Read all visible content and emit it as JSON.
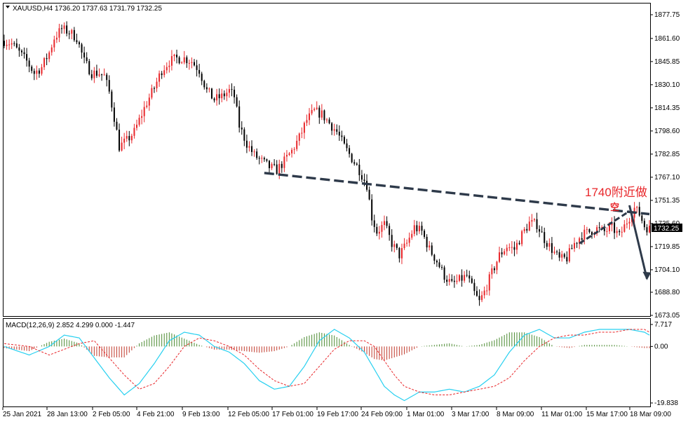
{
  "chart_data": [
    {
      "type": "candlestick",
      "title": "XAUUSD,H4",
      "ohlc_header": "1736.20 1737.63 1731.79 1732.25",
      "ylim": [
        1673.05,
        1880.0
      ],
      "y_ticks": [
        "1877.75",
        "1861.60",
        "1845.85",
        "1830.10",
        "1814.35",
        "1798.60",
        "1782.85",
        "1767.10",
        "1751.35",
        "1735.60",
        "1719.85",
        "1704.10",
        "1688.80",
        "1673.05"
      ],
      "last_price": "1732.25",
      "x_ticks": [
        "25 Jan 2021",
        "28 Jan 13:00",
        "2 Feb 05:00",
        "4 Feb 21:00",
        "9 Feb 13:00",
        "12 Feb 05:00",
        "17 Feb 01:00",
        "19 Feb 17:00",
        "24 Feb 09:00",
        "1 Mar 01:00",
        "3 Mar 17:00",
        "8 Mar 09:00",
        "11 Mar 01:00",
        "15 Mar 17:00",
        "18 Mar 09:00"
      ],
      "path_points": [
        [
          0,
          1860
        ],
        [
          3,
          1858
        ],
        [
          6,
          1852
        ],
        [
          9,
          1846
        ],
        [
          12,
          1838
        ],
        [
          15,
          1842
        ],
        [
          18,
          1852
        ],
        [
          20,
          1862
        ],
        [
          23,
          1868
        ],
        [
          26,
          1866
        ],
        [
          29,
          1862
        ],
        [
          32,
          1846
        ],
        [
          35,
          1838
        ],
        [
          38,
          1838
        ],
        [
          40,
          1836
        ],
        [
          42,
          1825
        ],
        [
          44,
          1808
        ],
        [
          46,
          1788
        ],
        [
          49,
          1792
        ],
        [
          52,
          1798
        ],
        [
          55,
          1810
        ],
        [
          57,
          1818
        ],
        [
          60,
          1828
        ],
        [
          63,
          1840
        ],
        [
          66,
          1846
        ],
        [
          69,
          1848
        ],
        [
          72,
          1848
        ],
        [
          75,
          1846
        ],
        [
          78,
          1840
        ],
        [
          81,
          1826
        ],
        [
          84,
          1820
        ],
        [
          87,
          1822
        ],
        [
          90,
          1826
        ],
        [
          92,
          1822
        ],
        [
          94,
          1802
        ],
        [
          97,
          1790
        ],
        [
          100,
          1782
        ],
        [
          103,
          1778
        ],
        [
          106,
          1774
        ],
        [
          109,
          1772
        ],
        [
          112,
          1778
        ],
        [
          115,
          1785
        ],
        [
          118,
          1794
        ],
        [
          121,
          1806
        ],
        [
          124,
          1812
        ],
        [
          127,
          1810
        ],
        [
          130,
          1804
        ],
        [
          133,
          1798
        ],
        [
          136,
          1788
        ],
        [
          139,
          1780
        ],
        [
          142,
          1772
        ],
        [
          145,
          1762
        ],
        [
          147,
          1740
        ],
        [
          149,
          1730
        ],
        [
          152,
          1735
        ],
        [
          155,
          1722
        ],
        [
          158,
          1714
        ],
        [
          161,
          1722
        ],
        [
          164,
          1733
        ],
        [
          167,
          1730
        ],
        [
          170,
          1718
        ],
        [
          173,
          1710
        ],
        [
          176,
          1700
        ],
        [
          179,
          1694
        ],
        [
          182,
          1697
        ],
        [
          185,
          1700
        ],
        [
          188,
          1688
        ],
        [
          190,
          1682
        ],
        [
          192,
          1689
        ],
        [
          195,
          1702
        ],
        [
          198,
          1714
        ],
        [
          201,
          1720
        ],
        [
          204,
          1718
        ],
        [
          207,
          1728
        ],
        [
          210,
          1736
        ],
        [
          213,
          1735
        ],
        [
          216,
          1725
        ],
        [
          219,
          1718
        ],
        [
          222,
          1711
        ],
        [
          225,
          1712
        ],
        [
          228,
          1722
        ],
        [
          231,
          1728
        ],
        [
          234,
          1730
        ],
        [
          237,
          1732
        ],
        [
          240,
          1730
        ],
        [
          243,
          1733
        ],
        [
          246,
          1727
        ],
        [
          249,
          1737
        ],
        [
          252,
          1746
        ],
        [
          254,
          1742
        ],
        [
          256,
          1734
        ],
        [
          258,
          1732
        ]
      ],
      "trendline_value": {
        "start": [
          104,
          1770
        ],
        "end": [
          258,
          1742
        ]
      },
      "short_trend": {
        "start": [
          230,
          1722
        ],
        "end": [
          250,
          1744
        ]
      },
      "arrow": {
        "start": [
          250,
          1748
        ],
        "end": [
          257,
          1698
        ]
      },
      "annotation": [
        "1740附近做",
        "空"
      ]
    },
    {
      "type": "histogram+line",
      "title": "MACD(12,26,9) 2.852 4.299 0.000 -1.447",
      "ylim": [
        -19.838,
        7.717
      ],
      "y_ticks": [
        "7.717",
        "0.00",
        "-19.838"
      ],
      "main_points": [
        [
          0,
          0
        ],
        [
          10,
          -3
        ],
        [
          18,
          0
        ],
        [
          24,
          4
        ],
        [
          30,
          3
        ],
        [
          36,
          -4
        ],
        [
          42,
          -11
        ],
        [
          48,
          -17
        ],
        [
          54,
          -13
        ],
        [
          60,
          -6
        ],
        [
          66,
          2
        ],
        [
          72,
          5
        ],
        [
          78,
          4
        ],
        [
          84,
          0
        ],
        [
          90,
          -2
        ],
        [
          96,
          -6
        ],
        [
          102,
          -12
        ],
        [
          108,
          -15
        ],
        [
          114,
          -14
        ],
        [
          120,
          -7
        ],
        [
          126,
          2
        ],
        [
          132,
          6
        ],
        [
          138,
          3
        ],
        [
          144,
          -2
        ],
        [
          148,
          -8
        ],
        [
          152,
          -14
        ],
        [
          156,
          -17
        ],
        [
          160,
          -19
        ],
        [
          166,
          -16
        ],
        [
          172,
          -16
        ],
        [
          178,
          -15
        ],
        [
          184,
          -16
        ],
        [
          190,
          -14
        ],
        [
          196,
          -10
        ],
        [
          202,
          -2
        ],
        [
          208,
          4
        ],
        [
          214,
          6
        ],
        [
          220,
          3
        ],
        [
          226,
          3
        ],
        [
          232,
          5
        ],
        [
          238,
          6
        ],
        [
          244,
          6
        ],
        [
          250,
          6
        ],
        [
          256,
          5
        ],
        [
          258,
          4
        ]
      ],
      "signal_points": [
        [
          0,
          1
        ],
        [
          10,
          0
        ],
        [
          18,
          -3
        ],
        [
          24,
          -1
        ],
        [
          30,
          1
        ],
        [
          36,
          2
        ],
        [
          42,
          -4
        ],
        [
          48,
          -10
        ],
        [
          54,
          -15
        ],
        [
          60,
          -13
        ],
        [
          66,
          -7
        ],
        [
          72,
          0
        ],
        [
          78,
          3
        ],
        [
          84,
          2
        ],
        [
          90,
          0
        ],
        [
          96,
          -3
        ],
        [
          102,
          -8
        ],
        [
          108,
          -12
        ],
        [
          114,
          -14
        ],
        [
          120,
          -13
        ],
        [
          126,
          -7
        ],
        [
          132,
          -1
        ],
        [
          138,
          2
        ],
        [
          144,
          2
        ],
        [
          148,
          0
        ],
        [
          152,
          -5
        ],
        [
          156,
          -10
        ],
        [
          160,
          -14
        ],
        [
          166,
          -16
        ],
        [
          172,
          -17
        ],
        [
          178,
          -17
        ],
        [
          184,
          -16
        ],
        [
          190,
          -15
        ],
        [
          196,
          -14
        ],
        [
          202,
          -11
        ],
        [
          208,
          -5
        ],
        [
          214,
          0
        ],
        [
          220,
          3
        ],
        [
          226,
          4
        ],
        [
          232,
          4
        ],
        [
          238,
          5
        ],
        [
          244,
          5
        ],
        [
          250,
          6
        ],
        [
          256,
          6
        ],
        [
          258,
          5
        ]
      ]
    }
  ],
  "colors": {
    "bull": "#e8262a",
    "bear": "#000000",
    "hist_pos": "#4a8a30",
    "hist_neg": "#c0392b",
    "macd_line": "#27d0f0",
    "signal_line": "#e8262a",
    "trend": "#2e3a4a",
    "price_label_bg": "#000000"
  }
}
